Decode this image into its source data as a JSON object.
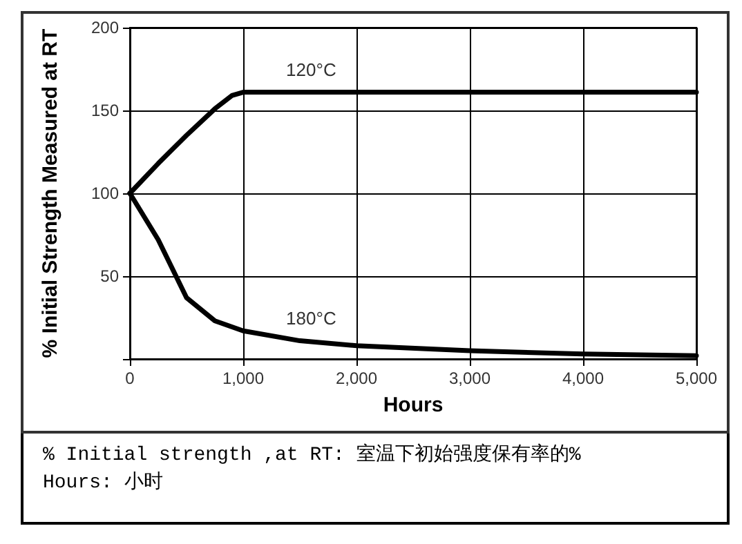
{
  "chart_data": {
    "type": "line",
    "xlabel": "Hours",
    "ylabel": "% Initial Strength Measured at RT",
    "xlim": [
      0,
      5000
    ],
    "xticks": [
      0,
      {
        "value": 1000,
        "label": "1,000"
      },
      {
        "value": 2000,
        "label": "2,000"
      },
      {
        "value": 3000,
        "label": "3,000"
      },
      {
        "value": 4000,
        "label": "4,000"
      },
      {
        "value": 5000,
        "label": "5,000"
      }
    ],
    "ylim": [
      0,
      200
    ],
    "yticks": [
      {
        "value": 0,
        "label": null
      },
      50,
      100,
      150,
      200
    ],
    "grid": true,
    "legend": false,
    "marker": "none",
    "line_style": "solid",
    "series": [
      {
        "name": "120°C",
        "color": "#000000",
        "x": [
          0,
          250,
          500,
          750,
          900,
          1000,
          5000
        ],
        "values": [
          100,
          118,
          135,
          151,
          159,
          161,
          161
        ]
      },
      {
        "name": "180°C",
        "color": "#000000",
        "x": [
          0,
          250,
          500,
          750,
          1000,
          1500,
          2000,
          3000,
          4000,
          5000
        ],
        "values": [
          100,
          72,
          37,
          23,
          17,
          11,
          8,
          5,
          3,
          2
        ]
      }
    ],
    "annotations": [
      "% Initial strength ,at RT:  室温下初始强度保有率的%",
      "Hours:  小时"
    ]
  }
}
